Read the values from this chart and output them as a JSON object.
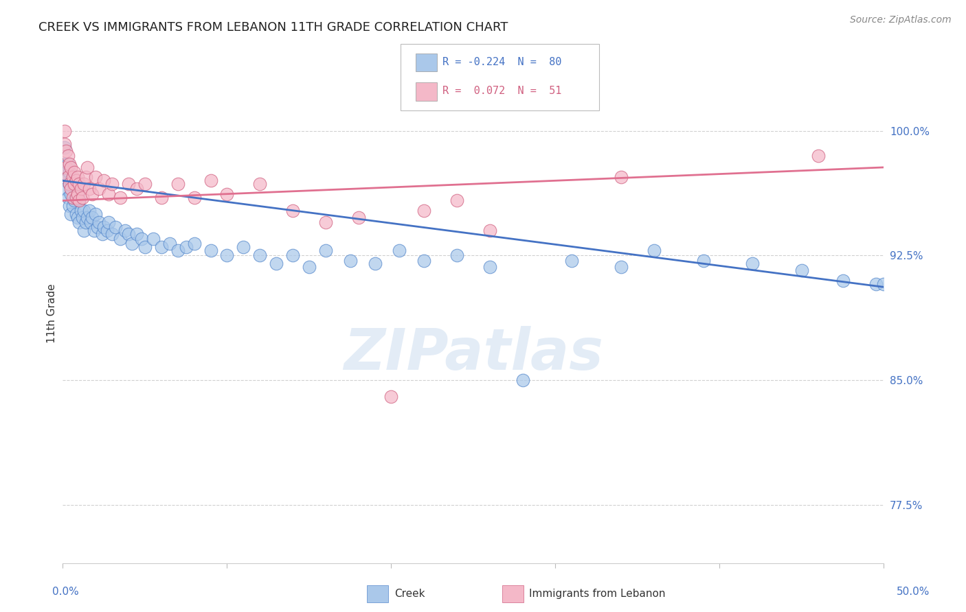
{
  "title": "CREEK VS IMMIGRANTS FROM LEBANON 11TH GRADE CORRELATION CHART",
  "source": "Source: ZipAtlas.com",
  "ylabel": "11th Grade",
  "ylabel_right_values": [
    0.775,
    0.85,
    0.925,
    1.0
  ],
  "xlim": [
    0.0,
    0.5
  ],
  "ylim": [
    0.74,
    1.04
  ],
  "legend_creek_label": "R = -0.224  N =  80",
  "legend_lebanon_label": "R =  0.072  N =  51",
  "watermark": "ZIPatlas",
  "background_color": "#ffffff",
  "grid_color": "#d0d0d0",
  "creek_fill_color": "#aac8ea",
  "lebanon_fill_color": "#f4b8c8",
  "creek_edge_color": "#5588cc",
  "lebanon_edge_color": "#d06080",
  "creek_line_color": "#4472c4",
  "lebanon_line_color": "#e07090",
  "legend_creek_sq_color": "#aac8ea",
  "legend_lebanon_sq_color": "#f4b8c8",
  "legend_text_creek_color": "#4472c4",
  "legend_text_lebanon_color": "#d06080",
  "right_axis_color": "#4472c4",
  "title_color": "#222222",
  "source_color": "#888888",
  "creek_trend_x": [
    0.0,
    0.5
  ],
  "creek_trend_y": [
    0.97,
    0.906
  ],
  "lebanon_trend_x": [
    0.0,
    0.5
  ],
  "lebanon_trend_y": [
    0.958,
    0.978
  ],
  "creek_x": [
    0.001,
    0.001,
    0.002,
    0.002,
    0.002,
    0.003,
    0.003,
    0.003,
    0.004,
    0.004,
    0.004,
    0.005,
    0.005,
    0.005,
    0.006,
    0.006,
    0.007,
    0.007,
    0.008,
    0.008,
    0.009,
    0.009,
    0.01,
    0.01,
    0.011,
    0.012,
    0.013,
    0.013,
    0.014,
    0.015,
    0.016,
    0.017,
    0.018,
    0.019,
    0.02,
    0.021,
    0.022,
    0.024,
    0.025,
    0.027,
    0.028,
    0.03,
    0.032,
    0.035,
    0.038,
    0.04,
    0.042,
    0.045,
    0.048,
    0.05,
    0.055,
    0.06,
    0.065,
    0.07,
    0.075,
    0.08,
    0.09,
    0.1,
    0.11,
    0.12,
    0.13,
    0.14,
    0.15,
    0.16,
    0.175,
    0.19,
    0.205,
    0.22,
    0.24,
    0.26,
    0.28,
    0.31,
    0.34,
    0.36,
    0.39,
    0.42,
    0.45,
    0.475,
    0.495,
    0.5
  ],
  "creek_y": [
    0.99,
    0.98,
    0.975,
    0.97,
    0.965,
    0.98,
    0.972,
    0.96,
    0.975,
    0.968,
    0.955,
    0.97,
    0.962,
    0.95,
    0.968,
    0.955,
    0.97,
    0.958,
    0.96,
    0.95,
    0.962,
    0.948,
    0.958,
    0.945,
    0.952,
    0.948,
    0.952,
    0.94,
    0.945,
    0.948,
    0.952,
    0.945,
    0.948,
    0.94,
    0.95,
    0.942,
    0.945,
    0.938,
    0.942,
    0.94,
    0.945,
    0.938,
    0.942,
    0.935,
    0.94,
    0.938,
    0.932,
    0.938,
    0.935,
    0.93,
    0.935,
    0.93,
    0.932,
    0.928,
    0.93,
    0.932,
    0.928,
    0.925,
    0.93,
    0.925,
    0.92,
    0.925,
    0.918,
    0.928,
    0.922,
    0.92,
    0.928,
    0.922,
    0.925,
    0.918,
    0.85,
    0.922,
    0.918,
    0.928,
    0.922,
    0.92,
    0.916,
    0.91,
    0.908,
    0.908
  ],
  "lebanon_x": [
    0.001,
    0.001,
    0.002,
    0.002,
    0.003,
    0.003,
    0.004,
    0.004,
    0.005,
    0.005,
    0.006,
    0.006,
    0.007,
    0.007,
    0.008,
    0.008,
    0.009,
    0.009,
    0.01,
    0.01,
    0.011,
    0.012,
    0.013,
    0.014,
    0.015,
    0.016,
    0.018,
    0.02,
    0.022,
    0.025,
    0.028,
    0.03,
    0.035,
    0.04,
    0.045,
    0.05,
    0.06,
    0.07,
    0.08,
    0.09,
    0.1,
    0.12,
    0.14,
    0.16,
    0.18,
    0.2,
    0.22,
    0.24,
    0.26,
    0.34,
    0.46
  ],
  "lebanon_y": [
    1.0,
    0.992,
    0.988,
    0.978,
    0.985,
    0.972,
    0.98,
    0.968,
    0.978,
    0.965,
    0.972,
    0.96,
    0.975,
    0.968,
    0.97,
    0.96,
    0.972,
    0.962,
    0.968,
    0.958,
    0.965,
    0.96,
    0.968,
    0.972,
    0.978,
    0.965,
    0.962,
    0.972,
    0.965,
    0.97,
    0.962,
    0.968,
    0.96,
    0.968,
    0.965,
    0.968,
    0.96,
    0.968,
    0.96,
    0.97,
    0.962,
    0.968,
    0.952,
    0.945,
    0.948,
    0.84,
    0.952,
    0.958,
    0.94,
    0.972,
    0.985
  ]
}
